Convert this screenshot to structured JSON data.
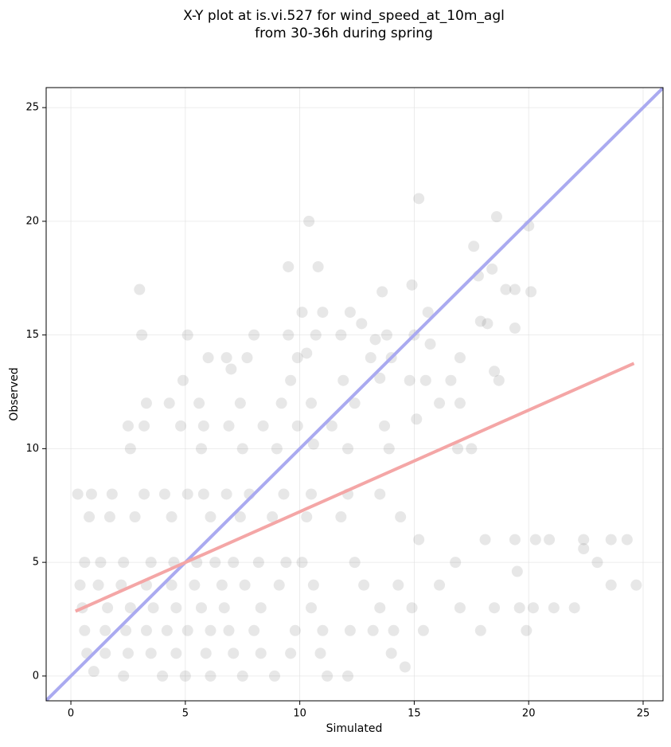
{
  "chart_data": {
    "type": "scatter",
    "title": "X-Y plot at is.vi.527 for wind_speed_at_10m_agl",
    "subtitle": "from 30-36h during spring",
    "x_label": "Simulated",
    "y_label": "Observed",
    "xlim": [
      -1.08,
      25.87
    ],
    "ylim": [
      -1.09,
      25.88
    ],
    "xticks": [
      0,
      5,
      10,
      15,
      20,
      25
    ],
    "yticks": [
      0,
      5,
      10,
      15,
      20,
      25
    ],
    "grid": true,
    "color": "#444444",
    "x": [
      15.2,
      10.4,
      18.6,
      20,
      17.6,
      9.5,
      10.8,
      17.8,
      18.4,
      3,
      14.9,
      13.6,
      19.4,
      20.1,
      19,
      10.1,
      11,
      12.2,
      15.6,
      17.9,
      18.2,
      19.4,
      3.1,
      5.1,
      8,
      9.5,
      10.7,
      11.8,
      13.8,
      15,
      12.7,
      13.3,
      15.7,
      6,
      6.8,
      7.7,
      9.9,
      10.3,
      13.1,
      14,
      17,
      7,
      4.9,
      9.6,
      11.9,
      13.5,
      14.8,
      15.5,
      16.6,
      18.7,
      18.5,
      3.3,
      4.3,
      5.6,
      7.4,
      9.2,
      10.5,
      12.4,
      16.1,
      17,
      2.5,
      3.2,
      4.8,
      5.8,
      6.9,
      8.4,
      9.9,
      11.4,
      13.7,
      15.1,
      2.6,
      5.7,
      7.5,
      9,
      10.6,
      12.1,
      13.9,
      16.9,
      17.5,
      0.3,
      0.9,
      1.8,
      3.2,
      4.1,
      5.1,
      5.8,
      6.8,
      7.8,
      9.3,
      10.5,
      12.1,
      13.5,
      0.8,
      1.7,
      2.8,
      4.4,
      6.1,
      7.4,
      8.8,
      10.3,
      11.8,
      14.4,
      0.6,
      1.3,
      2.3,
      3.5,
      4.5,
      5.5,
      6.3,
      7.1,
      8.2,
      9.4,
      10.1,
      12.4,
      15.2,
      16.8,
      18.1,
      19.4,
      20.3,
      20.9,
      22.4,
      23.6,
      24.3,
      22.4,
      23,
      19.5,
      0.4,
      1.2,
      2.2,
      3.3,
      4.4,
      5.4,
      6.6,
      7.6,
      9.1,
      10.6,
      12.8,
      14.3,
      16.1,
      23.6,
      24.7,
      0.5,
      1.6,
      2.6,
      3.6,
      4.6,
      5.7,
      6.7,
      8.3,
      10.5,
      13.5,
      14.9,
      17,
      18.5,
      19.6,
      20.2,
      21.1,
      22,
      0.6,
      1.5,
      2.4,
      3.3,
      4.2,
      5.1,
      6.1,
      6.9,
      8,
      9.8,
      11,
      12.2,
      13.2,
      14.1,
      15.4,
      17.9,
      19.9,
      0.7,
      1.5,
      2.5,
      3.5,
      4.6,
      5.9,
      7.1,
      8.3,
      9.6,
      10.9,
      14,
      1,
      2.3,
      4,
      5,
      6.1,
      7.5,
      8.9,
      11.2,
      12.1,
      14.6
    ],
    "values": [
      21,
      20,
      20.2,
      19.8,
      18.9,
      18,
      18,
      17.6,
      17.9,
      17,
      17.2,
      16.9,
      17,
      16.9,
      17,
      16,
      16,
      16,
      16,
      15.6,
      15.5,
      15.3,
      15,
      15,
      15,
      15,
      15,
      15,
      15,
      15,
      15.5,
      14.8,
      14.6,
      14,
      14,
      14,
      14,
      14.2,
      14,
      14,
      14,
      13.5,
      13,
      13,
      13,
      13.1,
      13,
      13,
      13,
      13,
      13.4,
      12,
      12,
      12,
      12,
      12,
      12,
      12,
      12,
      12,
      11,
      11,
      11,
      11,
      11,
      11,
      11,
      11,
      11,
      11.3,
      10,
      10,
      10,
      10,
      10.2,
      10,
      10,
      10,
      10,
      8,
      8,
      8,
      8,
      8,
      8,
      8,
      8,
      8,
      8,
      8,
      8,
      8,
      7,
      7,
      7,
      7,
      7,
      7,
      7,
      7,
      7,
      7,
      5,
      5,
      5,
      5,
      5,
      5,
      5,
      5,
      5,
      5,
      5,
      5,
      6,
      5,
      6,
      6,
      6,
      6,
      6,
      6,
      6,
      5.6,
      5,
      4.6,
      4,
      4,
      4,
      4,
      4,
      4,
      4,
      4,
      4,
      4,
      4,
      4,
      4,
      4,
      4,
      3,
      3,
      3,
      3,
      3,
      3,
      3,
      3,
      3,
      3,
      3,
      3,
      3,
      3,
      3,
      3,
      3,
      2,
      2,
      2,
      2,
      2,
      2,
      2,
      2,
      2,
      2,
      2,
      2,
      2,
      2,
      2,
      2,
      2,
      1,
      1,
      1,
      1,
      1,
      1,
      1,
      1,
      1,
      1,
      1,
      0.2,
      0,
      0,
      0,
      0,
      0,
      0,
      0,
      0,
      0.4
    ],
    "lines": [
      {
        "color": "#aaaaf0",
        "x": [
          -1.08,
          25.87
        ],
        "y": [
          -1.08,
          25.87
        ]
      },
      {
        "color": "#f4a6a6",
        "x": [
          0.2,
          24.6
        ],
        "y": [
          2.85,
          13.75
        ]
      }
    ]
  }
}
